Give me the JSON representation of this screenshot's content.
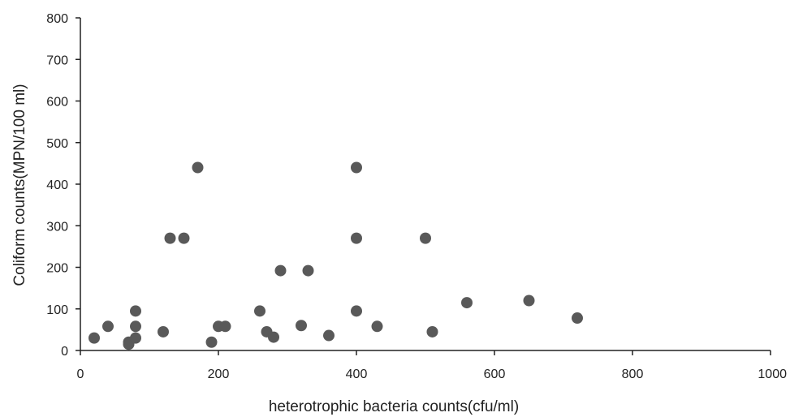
{
  "chart_data": {
    "type": "scatter",
    "title": "",
    "xlabel": "heterotrophic bacteria counts(cfu/ml)",
    "ylabel": "Coliform counts(MPN/100 ml)",
    "xlim": [
      0,
      1000
    ],
    "ylim": [
      0,
      800
    ],
    "x_ticks": [
      "0",
      "200",
      "400",
      "600",
      "800",
      "1000"
    ],
    "y_ticks": [
      "0",
      "100",
      "200",
      "300",
      "400",
      "500",
      "600",
      "700",
      "800"
    ],
    "grid": false,
    "legend": "none",
    "marker_color": "#595959",
    "series": [
      {
        "points": [
          {
            "x": 20,
            "y": 30
          },
          {
            "x": 40,
            "y": 58
          },
          {
            "x": 70,
            "y": 20
          },
          {
            "x": 70,
            "y": 15
          },
          {
            "x": 80,
            "y": 95
          },
          {
            "x": 80,
            "y": 58
          },
          {
            "x": 80,
            "y": 30
          },
          {
            "x": 120,
            "y": 45
          },
          {
            "x": 130,
            "y": 270
          },
          {
            "x": 150,
            "y": 270
          },
          {
            "x": 170,
            "y": 440
          },
          {
            "x": 190,
            "y": 20
          },
          {
            "x": 200,
            "y": 58
          },
          {
            "x": 210,
            "y": 58
          },
          {
            "x": 260,
            "y": 95
          },
          {
            "x": 270,
            "y": 45
          },
          {
            "x": 280,
            "y": 32
          },
          {
            "x": 290,
            "y": 192
          },
          {
            "x": 320,
            "y": 60
          },
          {
            "x": 330,
            "y": 192
          },
          {
            "x": 360,
            "y": 36
          },
          {
            "x": 400,
            "y": 440
          },
          {
            "x": 400,
            "y": 270
          },
          {
            "x": 400,
            "y": 95
          },
          {
            "x": 430,
            "y": 58
          },
          {
            "x": 500,
            "y": 270
          },
          {
            "x": 510,
            "y": 45
          },
          {
            "x": 560,
            "y": 115
          },
          {
            "x": 650,
            "y": 120
          },
          {
            "x": 720,
            "y": 78
          }
        ]
      }
    ]
  }
}
